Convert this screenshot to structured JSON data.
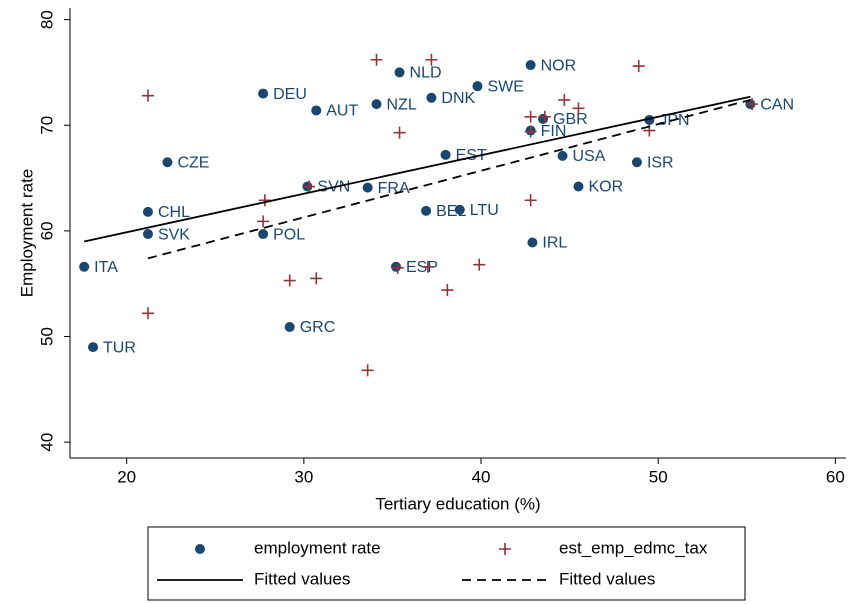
{
  "chart_data": {
    "type": "scatter",
    "x_label": "Tertiary education (%)",
    "y_label": "Employment rate",
    "xlim": [
      16.8,
      60.6
    ],
    "ylim": [
      38.5,
      81.1
    ],
    "xticks": [
      20,
      30,
      40,
      50,
      60
    ],
    "yticks": [
      40,
      50,
      60,
      70,
      80
    ],
    "grid": false,
    "legend_position": "bottom",
    "series": [
      {
        "name": "employment rate",
        "kind": "scatter",
        "marker": "circle",
        "color": "#1a476f",
        "labels": [
          "ITA",
          "TUR",
          "CHL",
          "SVK",
          "CZE",
          "DEU",
          "POL",
          "GRC",
          "SVN",
          "AUT",
          "NZL",
          "FRA",
          "ESP",
          "NLD",
          "DNK",
          "EST",
          "BEL",
          "LTU",
          "SWE",
          "NOR",
          "FIN",
          "GBR",
          "IRL",
          "USA",
          "KOR",
          "ISR",
          "JPN",
          "CAN"
        ],
        "x": [
          17.6,
          18.1,
          21.2,
          21.2,
          22.3,
          27.7,
          27.7,
          29.2,
          30.2,
          30.7,
          34.1,
          33.6,
          35.2,
          35.4,
          37.2,
          38.0,
          36.9,
          38.8,
          39.8,
          42.8,
          42.8,
          43.5,
          42.9,
          44.6,
          45.5,
          48.8,
          49.5,
          55.2
        ],
        "values": [
          56.6,
          49.0,
          61.8,
          59.7,
          66.5,
          73.0,
          59.7,
          50.9,
          64.2,
          71.4,
          72.0,
          64.1,
          56.6,
          75.0,
          72.6,
          67.2,
          61.9,
          62.0,
          73.7,
          75.7,
          69.5,
          70.6,
          58.9,
          67.1,
          64.2,
          66.5,
          70.5,
          72.0
        ]
      },
      {
        "name": "est_emp_edmc_tax",
        "kind": "scatter",
        "marker": "plus",
        "color": "#90353b",
        "x": [
          21.2,
          21.2,
          27.8,
          27.7,
          29.2,
          30.7,
          30.3,
          34.1,
          35.4,
          35.3,
          37.2,
          37.0,
          38.1,
          39.9,
          42.8,
          42.8,
          42.8,
          43.6,
          44.7,
          45.5,
          48.9,
          49.5,
          55.3,
          33.6
        ],
        "values": [
          72.8,
          52.2,
          62.9,
          60.9,
          55.3,
          55.5,
          64.2,
          76.2,
          69.3,
          56.5,
          76.2,
          56.6,
          54.4,
          56.8,
          62.9,
          70.8,
          69.4,
          70.8,
          72.4,
          71.6,
          75.6,
          69.5,
          72.0,
          46.8
        ]
      },
      {
        "name": "Fitted values",
        "kind": "line",
        "dash": "solid",
        "color": "#000000",
        "x": [
          17.6,
          55.2
        ],
        "values": [
          59.0,
          72.7
        ]
      },
      {
        "name": "Fitted values",
        "kind": "line",
        "dash": "dashed",
        "color": "#000000",
        "x": [
          21.2,
          55.2
        ],
        "values": [
          57.4,
          72.4
        ]
      }
    ]
  }
}
